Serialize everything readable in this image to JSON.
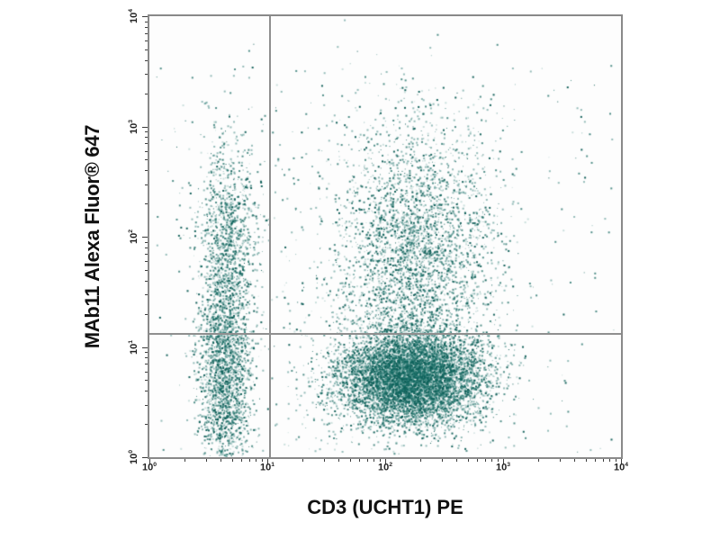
{
  "page": {
    "background": "#ffffff"
  },
  "chart_data": {
    "type": "scatter",
    "subtype": "flow_cytometry_dot_plot",
    "title": "",
    "xlabel": "CD3 (UCHT1) PE",
    "ylabel": "MAb11 Alexa Fluor® 647",
    "x_scale": "log10",
    "y_scale": "log10",
    "x_range_exponents": [
      0,
      4
    ],
    "y_range_exponents": [
      0,
      4
    ],
    "x_tick_exponents": [
      0,
      1,
      2,
      3,
      4
    ],
    "y_tick_exponents": [
      0,
      1,
      2,
      3,
      4
    ],
    "tick_label_base": "10",
    "grid": false,
    "legend": false,
    "axis_box_color": "#898989",
    "tick_color": "#3c3c3c",
    "quadrant_gate": {
      "x_log": 1.02,
      "y_log": 1.12,
      "line_color": "#8f8f8f",
      "line_width": 2
    },
    "dot_color_core": "#176e65",
    "dot_palette": [
      {
        "color": "rgba(21,109,101,0.45)",
        "weight": 0.45
      },
      {
        "color": "rgba(18,102,94,0.72)",
        "weight": 0.3
      },
      {
        "color": "rgba(12,92,85,0.95)",
        "weight": 0.13
      },
      {
        "color": "rgba(120,175,168,0.38)",
        "weight": 0.12
      }
    ],
    "random_seed": 42,
    "populations": [
      {
        "name": "cd3_negative_main",
        "shape": "gaussian",
        "center_log": [
          0.64,
          0.72
        ],
        "sigma_log": [
          0.11,
          0.45
        ],
        "count": 1900
      },
      {
        "name": "cd3_negative_upper_tail",
        "shape": "gaussian",
        "center_log": [
          0.66,
          1.85
        ],
        "sigma_log": [
          0.13,
          0.55
        ],
        "count": 1400
      },
      {
        "name": "cd3_positive_tnf_negative",
        "shape": "gaussian",
        "center_log": [
          2.22,
          0.72
        ],
        "sigma_log": [
          0.3,
          0.21
        ],
        "count": 7500
      },
      {
        "name": "cd3_positive_tnf_positive",
        "shape": "gaussian",
        "center_log": [
          2.25,
          1.8
        ],
        "sigma_log": [
          0.33,
          0.62
        ],
        "count": 3400
      },
      {
        "name": "background_scatter",
        "shape": "uniform",
        "x_log_range": [
          0.02,
          3.95
        ],
        "y_log_range": [
          0.02,
          3.55
        ],
        "count": 320
      },
      {
        "name": "mid_scatter",
        "shape": "uniform",
        "x_log_range": [
          1.0,
          3.1
        ],
        "y_log_range": [
          0.05,
          3.3
        ],
        "count": 420
      }
    ]
  }
}
